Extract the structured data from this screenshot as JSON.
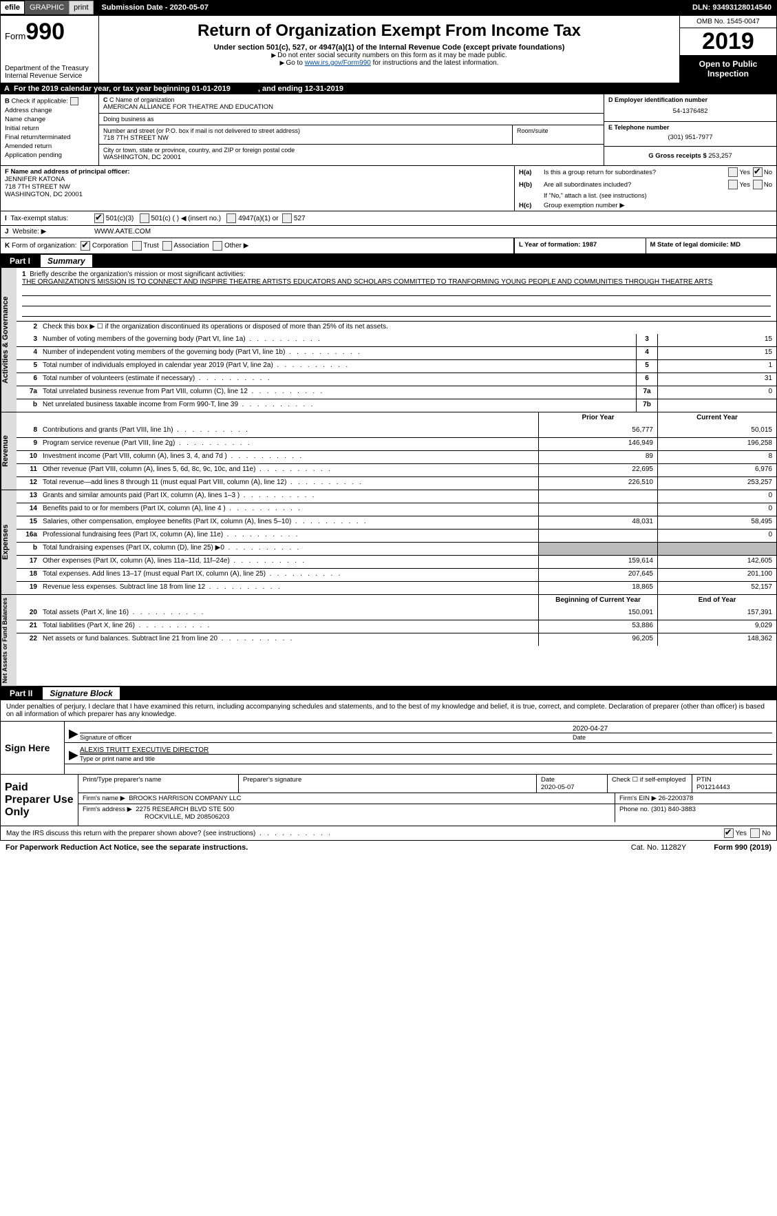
{
  "topbar": {
    "efile": "efile",
    "graphic": "GRAPHIC",
    "print": "print",
    "submission": "Submission Date - 2020-05-07",
    "dln": "DLN: 93493128014540"
  },
  "header": {
    "form_prefix": "Form",
    "form_number": "990",
    "dept": "Department of the Treasury",
    "irs": "Internal Revenue Service",
    "title": "Return of Organization Exempt From Income Tax",
    "subtitle": "Under section 501(c), 527, or 4947(a)(1) of the Internal Revenue Code (except private foundations)",
    "note1": "Do not enter social security numbers on this form as it may be made public.",
    "note2_prefix": "Go to ",
    "note2_link": "www.irs.gov/Form990",
    "note2_suffix": " for instructions and the latest information.",
    "omb": "OMB No. 1545-0047",
    "year": "2019",
    "open": "Open to Public Inspection"
  },
  "rowA": {
    "label": "A",
    "text1": "For the 2019 calendar year, or tax year beginning 01-01-2019",
    "text2": ", and ending 12-31-2019"
  },
  "b": {
    "label": "B",
    "check_if": "Check if applicable:",
    "addr_change": "Address change",
    "name_change": "Name change",
    "initial": "Initial return",
    "final": "Final return/terminated",
    "amended": "Amended return",
    "app_pending": "Application pending"
  },
  "c": {
    "name_lbl": "C Name of organization",
    "name": "AMERICAN ALLIANCE FOR THEATRE AND EDUCATION",
    "dba_lbl": "Doing business as",
    "dba": "",
    "street_lbl": "Number and street (or P.O. box if mail is not delivered to street address)",
    "street": "718 7TH STREET NW",
    "room_lbl": "Room/suite",
    "city_lbl": "City or town, state or province, country, and ZIP or foreign postal code",
    "city": "WASHINGTON, DC  20001"
  },
  "d": {
    "lbl": "D Employer identification number",
    "val": "54-1376482"
  },
  "e": {
    "lbl": "E Telephone number",
    "val": "(301) 951-7977"
  },
  "g": {
    "lbl": "G Gross receipts $",
    "val": "253,257"
  },
  "f": {
    "lbl": "F  Name and address of principal officer:",
    "name": "JENNIFER KATONA",
    "street": "718 7TH STREET NW",
    "city": "WASHINGTON, DC  20001"
  },
  "h": {
    "a_lbl": "H(a)",
    "a_text": "Is this a group return for subordinates?",
    "b_lbl": "H(b)",
    "b_text": "Are all subordinates included?",
    "b_note": "If \"No,\" attach a list. (see instructions)",
    "c_lbl": "H(c)",
    "c_text": "Group exemption number ▶",
    "yes": "Yes",
    "no": "No"
  },
  "i": {
    "lbl": "I",
    "text": "Tax-exempt status:",
    "opt1": "501(c)(3)",
    "opt2": "501(c) (  ) ◀ (insert no.)",
    "opt3": "4947(a)(1) or",
    "opt4": "527"
  },
  "j": {
    "lbl": "J",
    "text": "Website: ▶",
    "val": "WWW.AATE.COM"
  },
  "k": {
    "lbl": "K",
    "text": "Form of organization:",
    "corp": "Corporation",
    "trust": "Trust",
    "assoc": "Association",
    "other": "Other ▶"
  },
  "l": {
    "text": "L Year of formation: 1987"
  },
  "m": {
    "text": "M State of legal domicile: MD"
  },
  "part1": {
    "tag": "Part I",
    "title": "Summary",
    "side_ag": "Activities & Governance",
    "side_rev": "Revenue",
    "side_exp": "Expenses",
    "side_na": "Net Assets or Fund Balances",
    "line1_lbl": "1",
    "line1_text": "Briefly describe the organization's mission or most significant activities:",
    "line1_mission": "THE ORGANIZATION'S MISSION IS TO CONNECT AND INSPIRE THEATRE ARTISTS EDUCATORS AND SCHOLARS COMMITTED TO TRANFORMING YOUNG PEOPLE AND COMMUNITIES THROUGH THEATRE ARTS",
    "line2_lbl": "2",
    "line2_text": "Check this box ▶ ☐ if the organization discontinued its operations or disposed of more than 25% of its net assets.",
    "rows_ag": [
      {
        "n": "3",
        "t": "Number of voting members of the governing body (Part VI, line 1a)",
        "box": "3",
        "v": "15"
      },
      {
        "n": "4",
        "t": "Number of independent voting members of the governing body (Part VI, line 1b)",
        "box": "4",
        "v": "15"
      },
      {
        "n": "5",
        "t": "Total number of individuals employed in calendar year 2019 (Part V, line 2a)",
        "box": "5",
        "v": "1"
      },
      {
        "n": "6",
        "t": "Total number of volunteers (estimate if necessary)",
        "box": "6",
        "v": "31"
      },
      {
        "n": "7a",
        "t": "Total unrelated business revenue from Part VIII, column (C), line 12",
        "box": "7a",
        "v": "0"
      },
      {
        "n": "b",
        "t": "Net unrelated business taxable income from Form 990-T, line 39",
        "box": "7b",
        "v": ""
      }
    ],
    "col_head_prior": "Prior Year",
    "col_head_curr": "Current Year",
    "rows_rev": [
      {
        "n": "8",
        "t": "Contributions and grants (Part VIII, line 1h)",
        "p": "56,777",
        "c": "50,015"
      },
      {
        "n": "9",
        "t": "Program service revenue (Part VIII, line 2g)",
        "p": "146,949",
        "c": "196,258"
      },
      {
        "n": "10",
        "t": "Investment income (Part VIII, column (A), lines 3, 4, and 7d )",
        "p": "89",
        "c": "8"
      },
      {
        "n": "11",
        "t": "Other revenue (Part VIII, column (A), lines 5, 6d, 8c, 9c, 10c, and 11e)",
        "p": "22,695",
        "c": "6,976"
      },
      {
        "n": "12",
        "t": "Total revenue—add lines 8 through 11 (must equal Part VIII, column (A), line 12)",
        "p": "226,510",
        "c": "253,257"
      }
    ],
    "rows_exp": [
      {
        "n": "13",
        "t": "Grants and similar amounts paid (Part IX, column (A), lines 1–3 )",
        "p": "",
        "c": "0"
      },
      {
        "n": "14",
        "t": "Benefits paid to or for members (Part IX, column (A), line 4 )",
        "p": "",
        "c": "0"
      },
      {
        "n": "15",
        "t": "Salaries, other compensation, employee benefits (Part IX, column (A), lines 5–10)",
        "p": "48,031",
        "c": "58,495"
      },
      {
        "n": "16a",
        "t": "Professional fundraising fees (Part IX, column (A), line 11e)",
        "p": "",
        "c": "0"
      },
      {
        "n": "b",
        "t": "Total fundraising expenses (Part IX, column (D), line 25) ▶0",
        "p": "shaded",
        "c": "shaded"
      },
      {
        "n": "17",
        "t": "Other expenses (Part IX, column (A), lines 11a–11d, 11f–24e)",
        "p": "159,614",
        "c": "142,605"
      },
      {
        "n": "18",
        "t": "Total expenses. Add lines 13–17 (must equal Part IX, column (A), line 25)",
        "p": "207,645",
        "c": "201,100"
      },
      {
        "n": "19",
        "t": "Revenue less expenses. Subtract line 18 from line 12",
        "p": "18,865",
        "c": "52,157"
      }
    ],
    "col_head_beg": "Beginning of Current Year",
    "col_head_end": "End of Year",
    "rows_na": [
      {
        "n": "20",
        "t": "Total assets (Part X, line 16)",
        "p": "150,091",
        "c": "157,391"
      },
      {
        "n": "21",
        "t": "Total liabilities (Part X, line 26)",
        "p": "53,886",
        "c": "9,029"
      },
      {
        "n": "22",
        "t": "Net assets or fund balances. Subtract line 21 from line 20",
        "p": "96,205",
        "c": "148,362"
      }
    ]
  },
  "part2": {
    "tag": "Part II",
    "title": "Signature Block",
    "decl": "Under penalties of perjury, I declare that I have examined this return, including accompanying schedules and statements, and to the best of my knowledge and belief, it is true, correct, and complete. Declaration of preparer (other than officer) is based on all information of which preparer has any knowledge.",
    "sign_here": "Sign Here",
    "sig_officer_lbl": "Signature of officer",
    "sig_date": "2020-04-27",
    "sig_date_lbl": "Date",
    "sig_name": "ALEXIS TRUITT  EXECUTIVE DIRECTOR",
    "sig_name_lbl": "Type or print name and title",
    "paid": "Paid Preparer Use Only",
    "prep_name_lbl": "Print/Type preparer's name",
    "prep_sig_lbl": "Preparer's signature",
    "prep_date_lbl": "Date",
    "prep_date": "2020-05-07",
    "prep_check_lbl": "Check ☐ if self-employed",
    "ptin_lbl": "PTIN",
    "ptin": "P01214443",
    "firm_name_lbl": "Firm's name   ▶",
    "firm_name": "BROOKS HARRISON COMPANY LLC",
    "firm_ein_lbl": "Firm's EIN ▶",
    "firm_ein": "26-2200378",
    "firm_addr_lbl": "Firm's address ▶",
    "firm_addr1": "2275 RESEARCH BLVD STE 500",
    "firm_addr2": "ROCKVILLE, MD  208506203",
    "firm_phone_lbl": "Phone no.",
    "firm_phone": "(301) 840-3883",
    "discuss": "May the IRS discuss this return with the preparer shown above? (see instructions)",
    "yes": "Yes",
    "no": "No"
  },
  "footer": {
    "pra": "For Paperwork Reduction Act Notice, see the separate instructions.",
    "cat": "Cat. No. 11282Y",
    "form": "Form 990 (2019)"
  }
}
